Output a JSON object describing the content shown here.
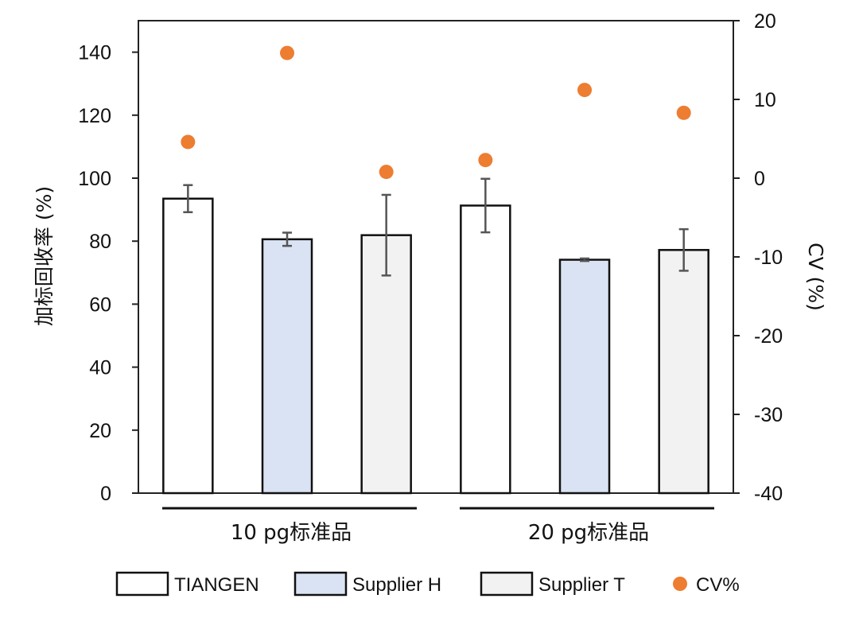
{
  "chart_data": {
    "type": "bar",
    "title": "",
    "groups": [
      {
        "label": "10 pg标准品",
        "categories": [
          "TIANGEN",
          "Supplier H",
          "Supplier T"
        ]
      },
      {
        "label": "20 pg标准品",
        "categories": [
          "TIANGEN",
          "Supplier H",
          "Supplier T"
        ]
      }
    ],
    "series": [
      {
        "name": "TIANGEN",
        "color": "#ffffff",
        "values": [
          93.5,
          91.3
        ],
        "errors": [
          4.3,
          8.5
        ]
      },
      {
        "name": "Supplier H",
        "color": "#dae3f3",
        "values": [
          80.6,
          74.1
        ],
        "errors": [
          2.1,
          0.4
        ]
      },
      {
        "name": "Supplier T",
        "color": "#f2f2f2",
        "values": [
          81.9,
          77.2
        ],
        "errors": [
          12.8,
          6.6
        ]
      }
    ],
    "cv_series": {
      "name": "CV%",
      "color": "#ed7d31",
      "axis": "right",
      "values": [
        [
          4.6,
          15.9,
          0.8
        ],
        [
          2.3,
          11.2,
          8.3
        ]
      ]
    },
    "ylabel": "加标回收率 (%)",
    "ylim": [
      0,
      150
    ],
    "yticks": [
      0,
      20,
      40,
      60,
      80,
      100,
      120,
      140
    ],
    "y2label": "CV (%)",
    "y2lim": [
      -40,
      20
    ],
    "y2ticks": [
      -40,
      -30,
      -20,
      -10,
      0,
      10,
      20
    ],
    "grid": false,
    "legend": {
      "position": "bottom",
      "items": [
        {
          "label": "TIANGEN",
          "kind": "box",
          "fill": "#ffffff"
        },
        {
          "label": "Supplier H",
          "kind": "box",
          "fill": "#dae3f3"
        },
        {
          "label": "Supplier T",
          "kind": "box",
          "fill": "#f2f2f2"
        },
        {
          "label": "CV%",
          "kind": "dot",
          "fill": "#ed7d31"
        }
      ]
    }
  }
}
